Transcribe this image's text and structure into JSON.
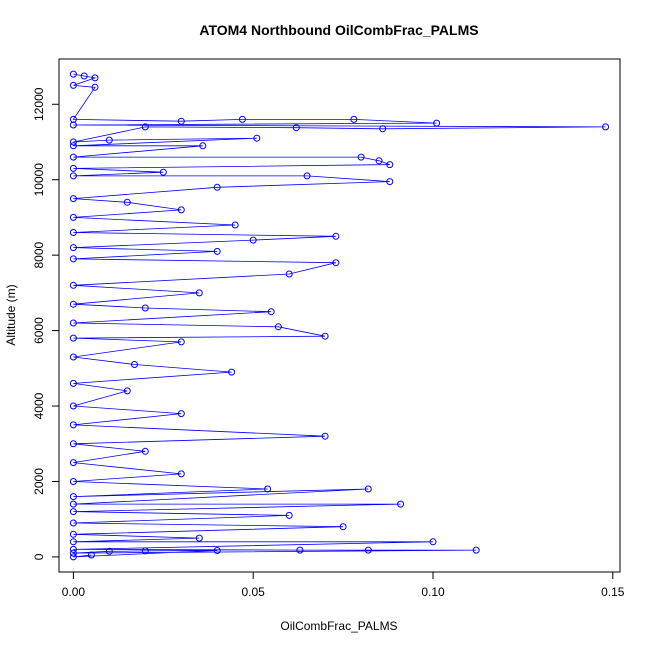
{
  "chart_data": {
    "type": "scatter",
    "title": "ATOM4 Northbound OilCombFrac_PALMS",
    "xlabel": "OilCombFrac_PALMS",
    "ylabel": "Altitude (m)",
    "xlim": [
      -0.004,
      0.152
    ],
    "ylim": [
      -400,
      13200
    ],
    "x_ticks": [
      0.0,
      0.05,
      0.1,
      0.15
    ],
    "x_tick_labels": [
      "0.00",
      "0.05",
      "0.10",
      "0.15"
    ],
    "y_ticks": [
      0,
      2000,
      4000,
      6000,
      8000,
      10000,
      12000
    ],
    "y_tick_labels": [
      "0",
      "2000",
      "4000",
      "6000",
      "8000",
      "10000",
      "12000"
    ],
    "grid": false,
    "legend": "none",
    "series": [
      {
        "color": "#0000ff",
        "marker": "open-circle",
        "line": true,
        "points": [
          [
            0.0,
            12800
          ],
          [
            0.003,
            12750
          ],
          [
            0.006,
            12700
          ],
          [
            0.0,
            12500
          ],
          [
            0.006,
            12450
          ],
          [
            0.0,
            11600
          ],
          [
            0.03,
            11550
          ],
          [
            0.047,
            11600
          ],
          [
            0.078,
            11600
          ],
          [
            0.101,
            11500
          ],
          [
            0.0,
            11450
          ],
          [
            0.148,
            11400
          ],
          [
            0.086,
            11350
          ],
          [
            0.062,
            11380
          ],
          [
            0.02,
            11400
          ],
          [
            0.0,
            11000
          ],
          [
            0.01,
            11050
          ],
          [
            0.051,
            11100
          ],
          [
            0.0,
            10900
          ],
          [
            0.036,
            10900
          ],
          [
            0.0,
            10600
          ],
          [
            0.08,
            10600
          ],
          [
            0.085,
            10500
          ],
          [
            0.088,
            10400
          ],
          [
            0.0,
            10300
          ],
          [
            0.025,
            10200
          ],
          [
            0.0,
            10100
          ],
          [
            0.065,
            10100
          ],
          [
            0.088,
            9950
          ],
          [
            0.04,
            9800
          ],
          [
            0.0,
            9500
          ],
          [
            0.015,
            9400
          ],
          [
            0.03,
            9200
          ],
          [
            0.0,
            9000
          ],
          [
            0.045,
            8800
          ],
          [
            0.0,
            8600
          ],
          [
            0.073,
            8500
          ],
          [
            0.05,
            8400
          ],
          [
            0.0,
            8200
          ],
          [
            0.04,
            8100
          ],
          [
            0.0,
            7900
          ],
          [
            0.073,
            7800
          ],
          [
            0.06,
            7500
          ],
          [
            0.0,
            7200
          ],
          [
            0.035,
            7000
          ],
          [
            0.0,
            6700
          ],
          [
            0.02,
            6600
          ],
          [
            0.055,
            6500
          ],
          [
            0.0,
            6200
          ],
          [
            0.057,
            6100
          ],
          [
            0.07,
            5850
          ],
          [
            0.0,
            5800
          ],
          [
            0.03,
            5700
          ],
          [
            0.0,
            5300
          ],
          [
            0.017,
            5100
          ],
          [
            0.044,
            4900
          ],
          [
            0.0,
            4600
          ],
          [
            0.015,
            4400
          ],
          [
            0.0,
            4000
          ],
          [
            0.03,
            3800
          ],
          [
            0.0,
            3500
          ],
          [
            0.07,
            3200
          ],
          [
            0.0,
            3000
          ],
          [
            0.02,
            2800
          ],
          [
            0.0,
            2500
          ],
          [
            0.03,
            2200
          ],
          [
            0.0,
            2000
          ],
          [
            0.054,
            1800
          ],
          [
            0.0,
            1600
          ],
          [
            0.082,
            1800
          ],
          [
            0.0,
            1400
          ],
          [
            0.091,
            1400
          ],
          [
            0.0,
            1200
          ],
          [
            0.06,
            1100
          ],
          [
            0.0,
            900
          ],
          [
            0.075,
            800
          ],
          [
            0.0,
            600
          ],
          [
            0.035,
            500
          ],
          [
            0.0,
            400
          ],
          [
            0.1,
            400
          ],
          [
            0.0,
            200
          ],
          [
            0.063,
            180
          ],
          [
            0.082,
            180
          ],
          [
            0.112,
            180
          ],
          [
            0.0,
            100
          ],
          [
            0.01,
            150
          ],
          [
            0.02,
            160
          ],
          [
            0.04,
            170
          ],
          [
            0.0,
            0
          ],
          [
            0.005,
            50
          ]
        ]
      }
    ]
  }
}
